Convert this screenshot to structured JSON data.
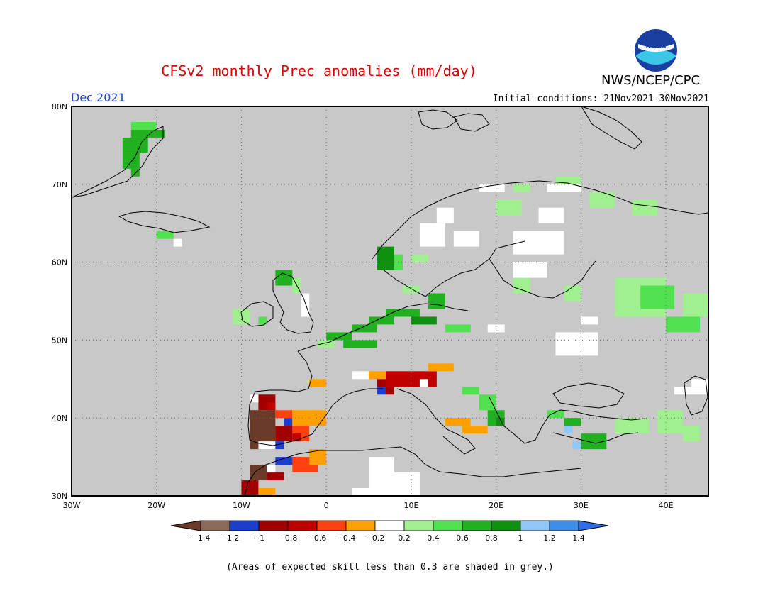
{
  "title": "CFSv2 monthly Prec anomalies (mm/day)",
  "agency": "NWS/NCEP/CPC",
  "logo_text": "NOAA",
  "month": "Dec 2021",
  "initial_conditions": "Initial conditions: 21Nov2021–30Nov2021",
  "footnote": "(Areas of expected skill less than 0.3 are shaded in grey.)",
  "map": {
    "lon_range": [
      -30,
      45
    ],
    "lat_range": [
      30,
      80
    ],
    "lon_ticks": [
      "30W",
      "20W",
      "10W",
      "0",
      "10E",
      "20E",
      "30E",
      "40E"
    ],
    "lat_ticks": [
      "30N",
      "40N",
      "50N",
      "60N",
      "70N",
      "80N"
    ],
    "grid": "dotted"
  },
  "colorbar": {
    "ticks": [
      "-1.4",
      "-1.2",
      "-1",
      "-0.8",
      "-0.6",
      "-0.4",
      "-0.2",
      "0.2",
      "0.4",
      "0.6",
      "0.8",
      "1",
      "1.2",
      "1.4"
    ],
    "colors": [
      "#6b3b2a",
      "#8c6a5a",
      "#1a3fd0",
      "#a00000",
      "#c00000",
      "#ff4010",
      "#ffa000",
      "#ffffff",
      "#a0f090",
      "#50e050",
      "#20b020",
      "#109010",
      "#90c8f8",
      "#3c8ee8",
      "#1a5fd0"
    ],
    "under_color": "#6b3b2a",
    "over_color": "#2f6ee8",
    "grey_color": "#c8c8c8"
  }
}
